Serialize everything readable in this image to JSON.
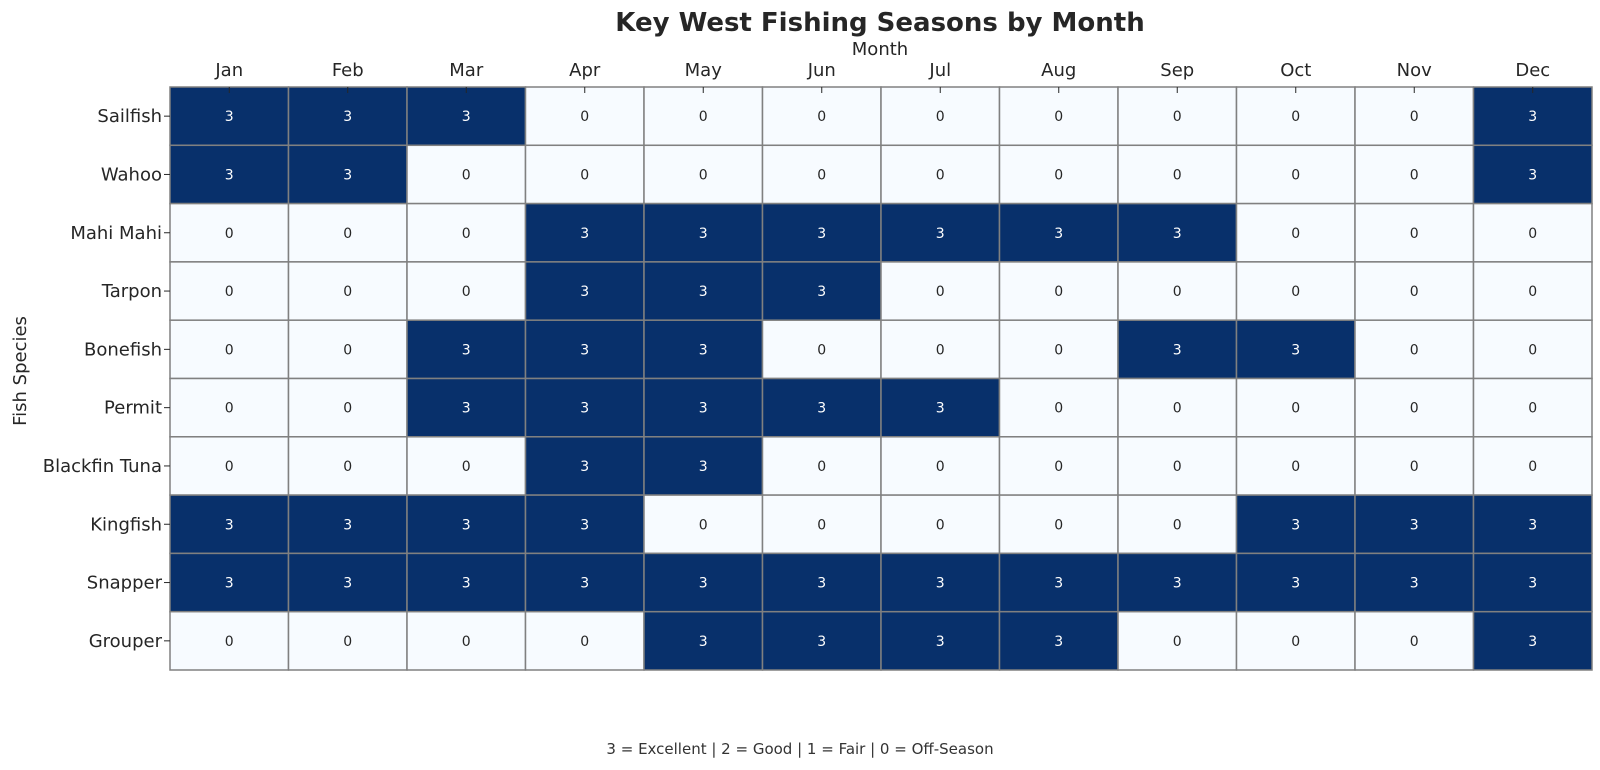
{
  "chart_data": {
    "type": "heatmap",
    "title": "Key West Fishing Seasons by Month",
    "xlabel": "Month",
    "ylabel": "Fish Species",
    "x_categories": [
      "Jan",
      "Feb",
      "Mar",
      "Apr",
      "May",
      "Jun",
      "Jul",
      "Aug",
      "Sep",
      "Oct",
      "Nov",
      "Dec"
    ],
    "y_categories": [
      "Sailfish",
      "Wahoo",
      "Mahi Mahi",
      "Tarpon",
      "Bonefish",
      "Permit",
      "Blackfin Tuna",
      "Kingfish",
      "Snapper",
      "Grouper"
    ],
    "values": [
      [
        3,
        3,
        3,
        0,
        0,
        0,
        0,
        0,
        0,
        0,
        0,
        3
      ],
      [
        3,
        3,
        0,
        0,
        0,
        0,
        0,
        0,
        0,
        0,
        0,
        3
      ],
      [
        0,
        0,
        0,
        3,
        3,
        3,
        3,
        3,
        3,
        0,
        0,
        0
      ],
      [
        0,
        0,
        0,
        3,
        3,
        3,
        0,
        0,
        0,
        0,
        0,
        0
      ],
      [
        0,
        0,
        3,
        3,
        3,
        0,
        0,
        0,
        3,
        3,
        0,
        0
      ],
      [
        0,
        0,
        3,
        3,
        3,
        3,
        3,
        0,
        0,
        0,
        0,
        0
      ],
      [
        0,
        0,
        0,
        3,
        3,
        0,
        0,
        0,
        0,
        0,
        0,
        0
      ],
      [
        3,
        3,
        3,
        3,
        0,
        0,
        0,
        0,
        0,
        3,
        3,
        3
      ],
      [
        3,
        3,
        3,
        3,
        3,
        3,
        3,
        3,
        3,
        3,
        3,
        3
      ],
      [
        0,
        0,
        0,
        0,
        3,
        3,
        3,
        3,
        0,
        0,
        0,
        3
      ]
    ],
    "value_range": [
      0,
      3
    ],
    "x_axis_position": "top",
    "colormap": "Blues",
    "colors": {
      "low": "#f7fbff",
      "high": "#08306b",
      "grid_line": "#808080",
      "text_on_dark": "#ffffff",
      "text_on_light": "#262626"
    },
    "footnote": "3 = Excellent | 2 = Good | 1 = Fair | 0 = Off-Season"
  }
}
